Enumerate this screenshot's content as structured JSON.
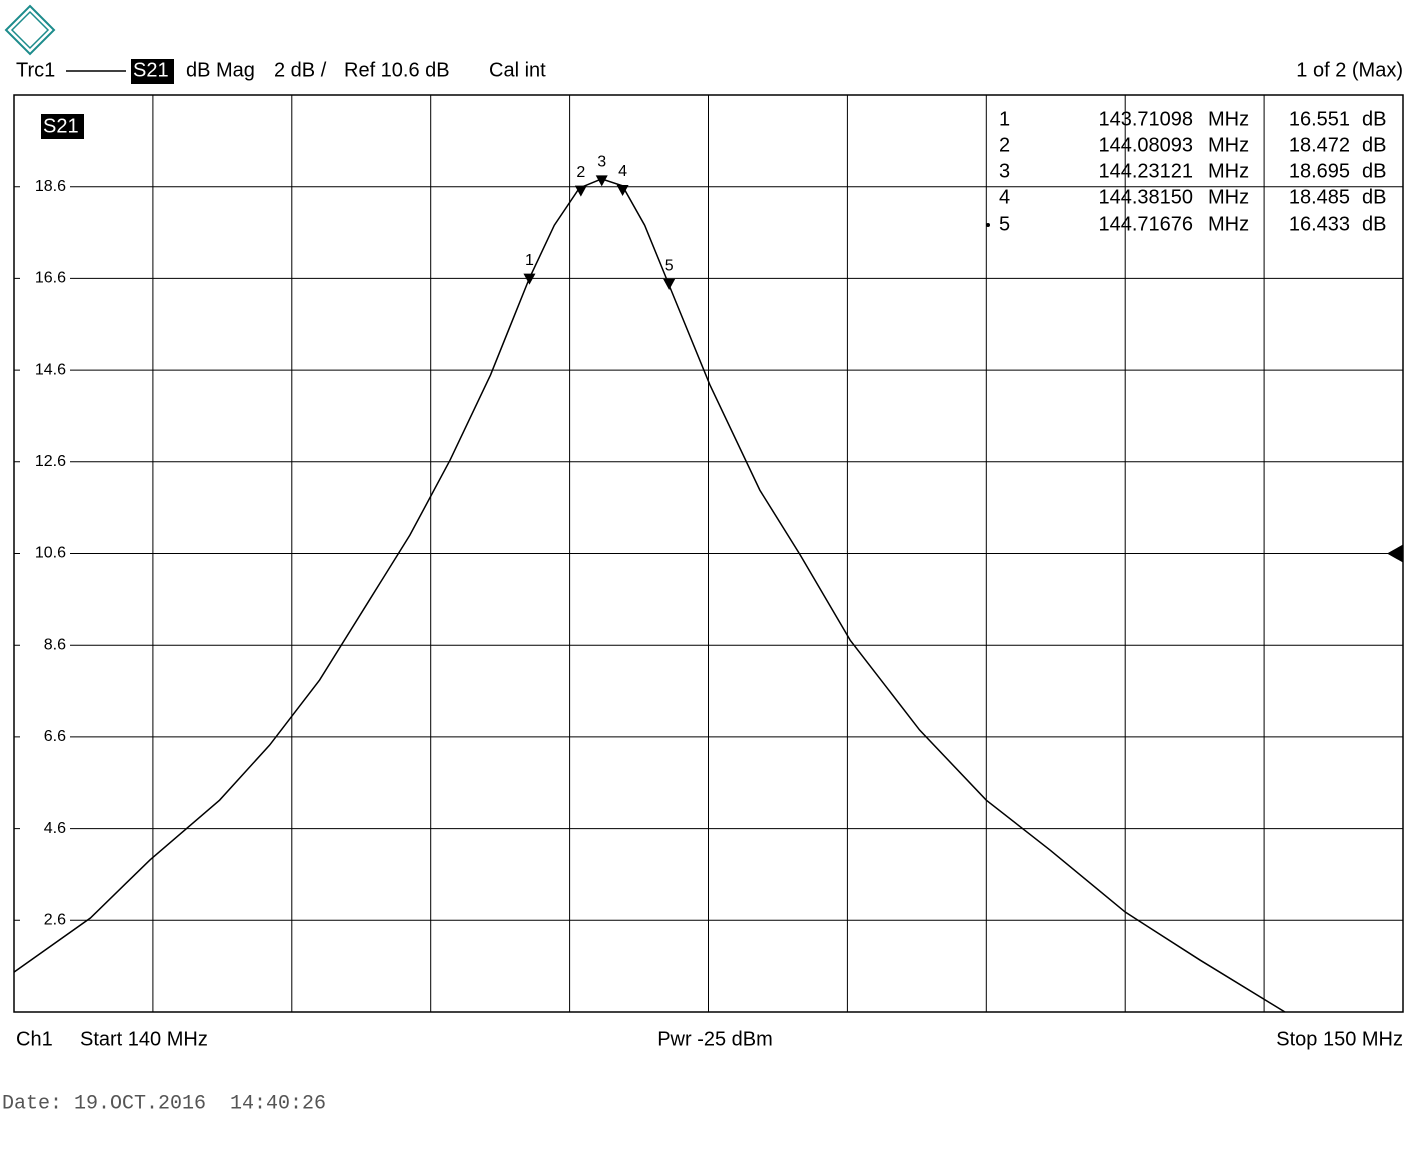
{
  "header": {
    "trace": "Trc1",
    "param": "S21",
    "format": "dB Mag",
    "scale": "2 dB /",
    "ref": "Ref 10.6 dB",
    "cal": "Cal int",
    "page": "1 of 2 (Max)"
  },
  "footer": {
    "channel": "Ch1",
    "start": "Start  140 MHz",
    "power": "Pwr  -25 dBm",
    "stop": "Stop  150 MHz",
    "date": "Date: 19.OCT.2016  14:40:26"
  },
  "chart_data": {
    "type": "line",
    "x": [
      140,
      140.55,
      140.98,
      141.48,
      141.84,
      142.2,
      142.56,
      142.85,
      143.14,
      143.43,
      143.71,
      143.89,
      144.07,
      144.23,
      144.38,
      144.54,
      144.71,
      145.01,
      145.37,
      145.66,
      146.02,
      146.52,
      147.0,
      147.46,
      148.0,
      148.54,
      149.15
    ],
    "series": [
      {
        "name": "S21",
        "color": "#000000",
        "values": [
          1.47,
          2.65,
          3.92,
          5.22,
          6.42,
          7.84,
          9.59,
          11.0,
          12.64,
          14.49,
          16.6,
          17.76,
          18.57,
          18.77,
          18.62,
          17.76,
          16.5,
          14.28,
          11.98,
          10.57,
          8.71,
          6.75,
          5.22,
          4.13,
          2.78,
          1.73,
          0.6
        ]
      }
    ],
    "xlim": [
      140,
      150
    ],
    "xticks": [
      141,
      142,
      143,
      144,
      145,
      146,
      147,
      148,
      149
    ],
    "ylim": [
      0.6,
      20.6
    ],
    "yticks": [
      2.6,
      4.6,
      6.6,
      8.6,
      10.6,
      12.6,
      14.6,
      16.6,
      18.6
    ],
    "grid": true,
    "ref_level": 10.6,
    "markers": {
      "names": [
        "1",
        "2",
        "3",
        "4",
        "5"
      ],
      "x": [
        143.71098,
        144.08093,
        144.23121,
        144.3815,
        144.71676
      ],
      "x_labels": [
        "143.71098",
        "144.08093",
        "144.23121",
        "144.38150",
        "144.71676"
      ],
      "x_unit": "MHz",
      "values": [
        16.551,
        18.472,
        18.695,
        18.485,
        16.433
      ],
      "value_unit": "dB"
    }
  }
}
